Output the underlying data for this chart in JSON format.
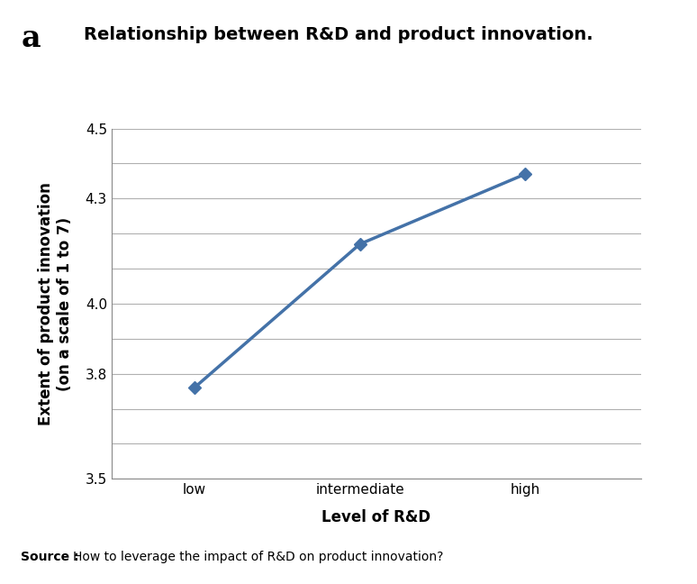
{
  "x_labels": [
    "low",
    "intermediate",
    "high"
  ],
  "x_positions": [
    1,
    2,
    3
  ],
  "y_values": [
    3.76,
    4.17,
    4.37
  ],
  "ylim": [
    3.5,
    4.5
  ],
  "yticks": [
    3.5,
    3.6,
    3.7,
    3.8,
    3.9,
    4.0,
    4.1,
    4.2,
    4.3,
    4.4,
    4.5
  ],
  "ytick_labels": [
    "3.5",
    "",
    "",
    "3.8",
    "",
    "4.0",
    "",
    "",
    "4.3",
    "",
    "4.5"
  ],
  "line_color": "#4472a8",
  "marker_color": "#4472a8",
  "marker_style": "D",
  "marker_size": 7,
  "line_width": 2.5,
  "xlabel": "Level of R&D",
  "ylabel_line1": "Extent of product innovation",
  "ylabel_line2": "(on a scale of 1 to 7)",
  "panel_label": "a",
  "title": "Relationship between R&D and product innovation.",
  "source_bold": "Source : ",
  "source_normal": "How to leverage the impact of R&D on product innovation?",
  "grid_color": "#b0b0b0",
  "background_color": "#ffffff",
  "title_fontsize": 14,
  "label_fontsize": 12,
  "tick_fontsize": 11,
  "source_fontsize": 10,
  "panel_fontsize": 24
}
